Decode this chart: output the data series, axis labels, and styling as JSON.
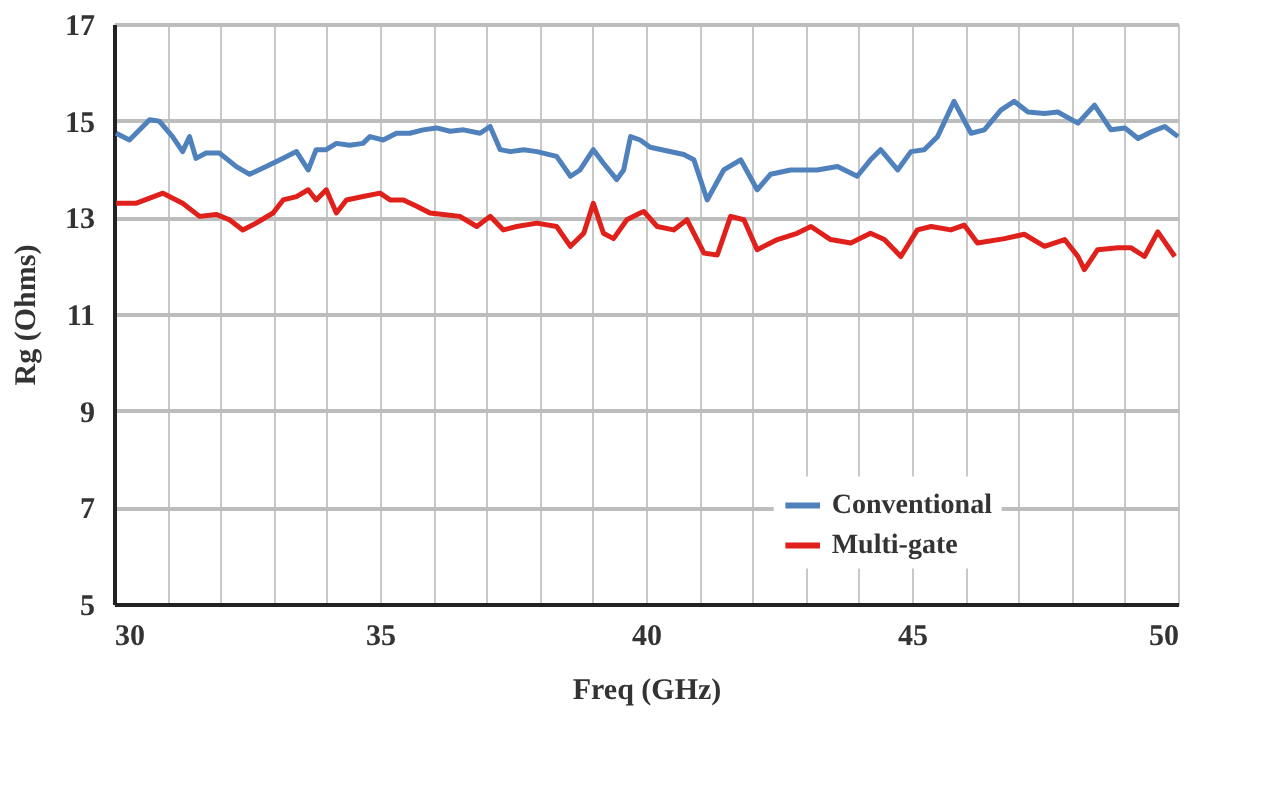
{
  "chart_data": {
    "type": "line",
    "xlabel": "Freq (GHz)",
    "ylabel": "Rg (Ohms)",
    "xlim": [
      30,
      50
    ],
    "ylim": [
      5,
      17
    ],
    "xticks": [
      30,
      {
        "value": 31,
        "label": null
      },
      {
        "value": 32,
        "label": null
      },
      {
        "value": 33,
        "label": null
      },
      {
        "value": 34,
        "label": null
      },
      35,
      {
        "value": 36,
        "label": null
      },
      {
        "value": 37,
        "label": null
      },
      {
        "value": 38,
        "label": null
      },
      {
        "value": 39,
        "label": null
      },
      40,
      {
        "value": 41,
        "label": null
      },
      {
        "value": 42,
        "label": null
      },
      {
        "value": 43,
        "label": null
      },
      {
        "value": 44,
        "label": null
      },
      45,
      {
        "value": 46,
        "label": null
      },
      {
        "value": 47,
        "label": null
      },
      {
        "value": 48,
        "label": null
      },
      {
        "value": 49,
        "label": null
      },
      50
    ],
    "yticks": [
      5,
      7,
      9,
      11,
      13,
      15,
      17
    ],
    "grid": true,
    "legend": "bottom right",
    "marker": "none",
    "line_style": "solid",
    "series": [
      {
        "name": "Conventional",
        "color": "#4f81bd",
        "x": [
          30.04,
          30.29,
          30.67,
          30.85,
          31.1,
          31.29,
          31.42,
          31.54,
          31.73,
          31.98,
          32.3,
          32.55,
          32.86,
          33.18,
          33.43,
          33.65,
          33.8,
          33.99,
          34.18,
          34.43,
          34.68,
          34.81,
          35.06,
          35.31,
          35.56,
          35.81,
          36.06,
          36.32,
          36.57,
          36.88,
          37.07,
          37.26,
          37.45,
          37.7,
          37.95,
          38.32,
          38.58,
          38.76,
          39.01,
          39.2,
          39.45,
          39.58,
          39.71,
          39.89,
          40.08,
          40.71,
          40.9,
          41.15,
          41.46,
          41.78,
          42.09,
          42.34,
          42.72,
          43.22,
          43.6,
          43.97,
          44.22,
          44.41,
          44.73,
          44.98,
          45.23,
          45.48,
          45.79,
          46.11,
          46.36,
          46.67,
          46.92,
          47.18,
          47.49,
          47.74,
          48.12,
          48.43,
          48.74,
          49.0,
          49.25,
          49.5,
          49.75,
          50.0
        ],
        "values": [
          14.74,
          14.6,
          15.02,
          14.99,
          14.67,
          14.36,
          14.67,
          14.22,
          14.33,
          14.33,
          14.05,
          13.89,
          14.05,
          14.22,
          14.36,
          13.98,
          14.4,
          14.4,
          14.53,
          14.49,
          14.53,
          14.67,
          14.6,
          14.74,
          14.74,
          14.81,
          14.85,
          14.78,
          14.81,
          14.74,
          14.88,
          14.4,
          14.36,
          14.4,
          14.36,
          14.26,
          13.85,
          13.98,
          14.4,
          14.12,
          13.78,
          13.98,
          14.67,
          14.6,
          14.45,
          14.3,
          14.19,
          13.36,
          13.98,
          14.19,
          13.57,
          13.89,
          13.98,
          13.98,
          14.05,
          13.85,
          14.19,
          14.4,
          13.98,
          14.36,
          14.4,
          14.67,
          15.4,
          14.74,
          14.81,
          15.22,
          15.4,
          15.18,
          15.15,
          15.18,
          14.95,
          15.32,
          14.81,
          14.85,
          14.63,
          14.77,
          14.88,
          14.67
        ]
      },
      {
        "name": "Multi-gate",
        "color": "#e0201b",
        "x": [
          30.04,
          30.41,
          30.92,
          31.29,
          31.61,
          31.92,
          32.17,
          32.42,
          32.67,
          32.99,
          33.18,
          33.43,
          33.65,
          33.8,
          33.99,
          34.18,
          34.37,
          34.68,
          35.0,
          35.19,
          35.44,
          35.69,
          35.94,
          36.19,
          36.5,
          36.82,
          37.07,
          37.32,
          37.57,
          37.95,
          38.32,
          38.58,
          38.83,
          39.01,
          39.2,
          39.39,
          39.64,
          39.89,
          39.96,
          40.21,
          40.52,
          40.77,
          41.09,
          41.34,
          41.59,
          41.84,
          42.09,
          42.47,
          42.84,
          43.1,
          43.47,
          43.85,
          44.22,
          44.48,
          44.79,
          45.1,
          45.36,
          45.73,
          45.98,
          46.23,
          46.74,
          47.11,
          47.49,
          47.87,
          48.12,
          48.24,
          48.49,
          48.87,
          49.12,
          49.37,
          49.62,
          49.94
        ],
        "values": [
          13.29,
          13.29,
          13.5,
          13.29,
          13.02,
          13.06,
          12.95,
          12.74,
          12.88,
          13.09,
          13.36,
          13.43,
          13.57,
          13.36,
          13.57,
          13.09,
          13.36,
          13.43,
          13.5,
          13.36,
          13.36,
          13.23,
          13.09,
          13.06,
          13.02,
          12.81,
          13.02,
          12.74,
          12.81,
          12.88,
          12.81,
          12.4,
          12.67,
          13.29,
          12.67,
          12.56,
          12.95,
          13.09,
          13.12,
          12.81,
          12.74,
          12.95,
          12.26,
          12.22,
          13.02,
          12.95,
          12.33,
          12.54,
          12.67,
          12.81,
          12.54,
          12.47,
          12.67,
          12.54,
          12.19,
          12.74,
          12.81,
          12.74,
          12.84,
          12.47,
          12.56,
          12.65,
          12.4,
          12.54,
          12.19,
          11.92,
          12.33,
          12.37,
          12.37,
          12.19,
          12.7,
          12.19
        ]
      }
    ]
  }
}
